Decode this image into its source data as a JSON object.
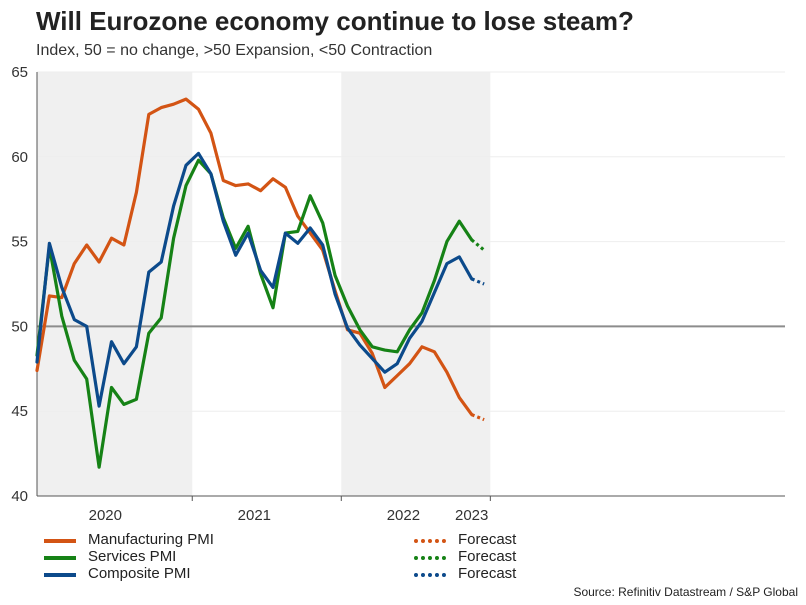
{
  "title": "Will Eurozone economy continue to lose steam?",
  "subtitle": "Index, 50 = no change, >50 Expansion, <50 Contraction",
  "source": "Source: Refinitiv Datastream / S&P Global",
  "colors": {
    "manufacturing": "#d35414",
    "services": "#168216",
    "composite": "#0c4a8b",
    "reference_line": "#8c8c8c",
    "shade": "#f0f0f0",
    "grid": "#eeeeee"
  },
  "legend": {
    "manufacturing": "Manufacturing PMI",
    "services": "Services PMI",
    "composite": "Composite PMI",
    "forecast": "Forecast"
  },
  "chart_data": {
    "type": "line",
    "title": "Will Eurozone economy continue to lose steam?",
    "subtitle": "Index, 50 = no change, >50 Expansion, <50 Contraction",
    "xlabel": "",
    "ylabel": "",
    "ylim": [
      40,
      65
    ],
    "yticks": [
      40,
      45,
      50,
      55,
      60,
      65
    ],
    "reference_value": 50,
    "x_start_month": "2019-12",
    "year_labels": [
      {
        "label": "2020",
        "month_index": 5.5
      },
      {
        "label": "2021",
        "month_index": 17.5
      },
      {
        "label": "2022",
        "month_index": 29.5
      },
      {
        "label": "2023",
        "month_index": 35
      }
    ],
    "year_ticks": [
      12.5,
      24.5,
      36.5
    ],
    "shaded_years": [
      {
        "label": "2020",
        "from": 0,
        "to": 12.5
      },
      {
        "label": "2022",
        "from": 24.5,
        "to": 36.5
      }
    ],
    "series": [
      {
        "name": "Manufacturing PMI",
        "key": "manufacturing",
        "values": [
          47.4,
          51.8,
          51.7,
          53.7,
          54.8,
          53.8,
          55.2,
          54.8,
          57.9,
          62.5,
          62.9,
          63.1,
          63.4,
          62.8,
          61.4,
          58.6,
          58.3,
          58.4,
          58.0,
          58.7,
          58.2,
          56.5,
          55.5,
          54.5,
          52.1,
          49.8,
          49.6,
          48.4,
          46.4,
          47.1,
          47.8,
          48.8,
          48.5,
          47.3,
          45.8,
          44.8
        ],
        "forecast": [
          44.8,
          44.5
        ]
      },
      {
        "name": "Services PMI",
        "key": "services",
        "values": [
          48.3,
          54.7,
          50.6,
          48.0,
          46.9,
          41.7,
          46.4,
          45.4,
          45.7,
          49.6,
          50.5,
          55.2,
          58.3,
          59.8,
          59.0,
          56.4,
          54.6,
          55.9,
          53.1,
          51.1,
          55.5,
          55.6,
          57.7,
          56.1,
          53.0,
          51.2,
          49.8,
          48.8,
          48.6,
          48.5,
          49.8,
          50.8,
          52.7,
          55.0,
          56.2,
          55.1
        ],
        "forecast": [
          55.1,
          54.5
        ]
      },
      {
        "name": "Composite PMI",
        "key": "composite",
        "values": [
          47.9,
          54.9,
          52.3,
          50.4,
          50.0,
          45.3,
          49.1,
          47.8,
          48.8,
          53.2,
          53.8,
          57.1,
          59.5,
          60.2,
          59.0,
          56.2,
          54.2,
          55.5,
          53.3,
          52.3,
          55.5,
          54.9,
          55.8,
          54.8,
          51.9,
          49.9,
          48.9,
          48.1,
          47.3,
          47.8,
          49.3,
          50.3,
          52.0,
          53.7,
          54.1,
          52.8
        ],
        "forecast": [
          52.8,
          52.5
        ]
      }
    ]
  }
}
